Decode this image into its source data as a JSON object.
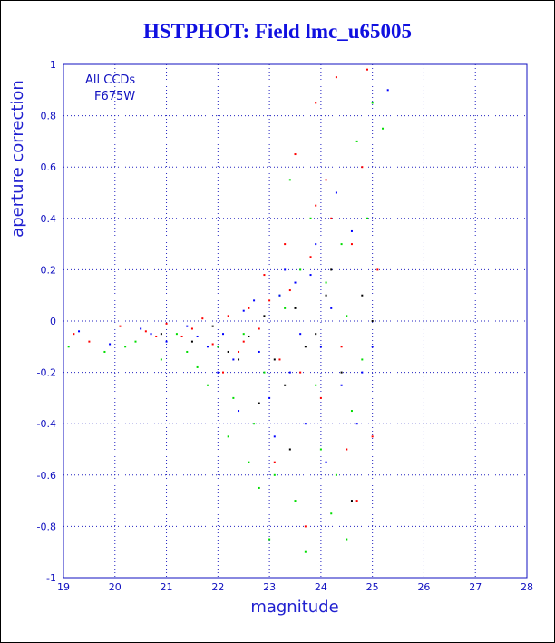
{
  "chart_data": {
    "type": "scatter",
    "title": "HSTPHOT: Field lmc_u65005",
    "xlabel": "magnitude",
    "ylabel": "aperture correction",
    "xlim": [
      19,
      28
    ],
    "ylim": [
      -1,
      1
    ],
    "xticks": [
      19,
      20,
      21,
      22,
      23,
      24,
      25,
      26,
      27,
      28
    ],
    "yticks": [
      -1,
      -0.8,
      -0.6,
      -0.4,
      -0.2,
      0,
      0.2,
      0.4,
      0.6,
      0.8,
      1
    ],
    "ytick_labels": [
      "-1",
      "-0.8",
      "-0.6",
      "-0.4",
      "-0.2",
      "0",
      "0.2",
      "0.4",
      "0.6",
      "0.8",
      "1"
    ],
    "grid": true,
    "annotations": [
      "All CCDs",
      "F675W"
    ],
    "series_colors": [
      "#ff0000",
      "#00dd00",
      "#0000ff",
      "#000000"
    ],
    "series": [
      {
        "color": "#ff0000",
        "points": [
          [
            19.2,
            -0.05
          ],
          [
            19.5,
            -0.08
          ],
          [
            20.1,
            -0.02
          ],
          [
            20.6,
            -0.04
          ],
          [
            21.0,
            -0.01
          ],
          [
            21.3,
            -0.06
          ],
          [
            21.7,
            0.01
          ],
          [
            21.9,
            -0.09
          ],
          [
            22.2,
            0.02
          ],
          [
            22.4,
            -0.12
          ],
          [
            22.6,
            0.05
          ],
          [
            22.8,
            -0.03
          ],
          [
            23.0,
            0.08
          ],
          [
            23.2,
            -0.15
          ],
          [
            23.4,
            0.12
          ],
          [
            23.5,
            0.65
          ],
          [
            23.6,
            -0.2
          ],
          [
            23.8,
            0.25
          ],
          [
            23.9,
            0.85
          ],
          [
            24.0,
            -0.3
          ],
          [
            24.2,
            0.4
          ],
          [
            24.3,
            0.95
          ],
          [
            24.5,
            -0.5
          ],
          [
            24.6,
            0.3
          ],
          [
            24.7,
            -0.7
          ],
          [
            24.8,
            0.6
          ],
          [
            24.9,
            0.98
          ],
          [
            25.0,
            -0.45
          ],
          [
            25.1,
            0.2
          ],
          [
            23.1,
            -0.55
          ],
          [
            22.9,
            0.18
          ],
          [
            23.7,
            -0.8
          ],
          [
            24.1,
            0.55
          ],
          [
            22.5,
            -0.08
          ],
          [
            21.5,
            -0.03
          ],
          [
            20.8,
            -0.06
          ],
          [
            23.3,
            0.3
          ],
          [
            24.4,
            -0.1
          ],
          [
            22.1,
            -0.2
          ],
          [
            23.9,
            0.45
          ]
        ]
      },
      {
        "color": "#00dd00",
        "points": [
          [
            19.1,
            -0.1
          ],
          [
            19.8,
            -0.12
          ],
          [
            20.4,
            -0.08
          ],
          [
            20.9,
            -0.15
          ],
          [
            21.2,
            -0.05
          ],
          [
            21.6,
            -0.18
          ],
          [
            21.8,
            -0.25
          ],
          [
            22.0,
            -0.1
          ],
          [
            22.3,
            -0.3
          ],
          [
            22.5,
            -0.05
          ],
          [
            22.7,
            -0.4
          ],
          [
            22.9,
            -0.2
          ],
          [
            23.1,
            -0.6
          ],
          [
            23.3,
            0.05
          ],
          [
            23.5,
            -0.7
          ],
          [
            23.6,
            0.2
          ],
          [
            23.7,
            -0.9
          ],
          [
            23.8,
            0.4
          ],
          [
            24.0,
            -0.5
          ],
          [
            24.1,
            0.15
          ],
          [
            24.2,
            -0.75
          ],
          [
            24.4,
            0.3
          ],
          [
            24.5,
            0.02
          ],
          [
            24.6,
            -0.35
          ],
          [
            24.7,
            0.7
          ],
          [
            24.8,
            -0.15
          ],
          [
            25.0,
            0.85
          ],
          [
            25.2,
            0.75
          ],
          [
            22.2,
            -0.45
          ],
          [
            23.0,
            -0.85
          ],
          [
            23.4,
            0.55
          ],
          [
            22.8,
            -0.65
          ],
          [
            24.3,
            -0.6
          ],
          [
            21.4,
            -0.12
          ],
          [
            20.2,
            -0.1
          ],
          [
            23.9,
            -0.25
          ],
          [
            24.9,
            0.4
          ],
          [
            23.2,
            0.1
          ],
          [
            22.6,
            -0.55
          ],
          [
            24.5,
            -0.85
          ]
        ]
      },
      {
        "color": "#0000ff",
        "points": [
          [
            19.3,
            -0.04
          ],
          [
            19.9,
            -0.09
          ],
          [
            20.5,
            -0.03
          ],
          [
            21.0,
            -0.08
          ],
          [
            21.4,
            -0.02
          ],
          [
            21.8,
            -0.1
          ],
          [
            22.1,
            -0.05
          ],
          [
            22.3,
            -0.15
          ],
          [
            22.5,
            0.04
          ],
          [
            22.8,
            -0.12
          ],
          [
            23.0,
            -0.3
          ],
          [
            23.2,
            0.1
          ],
          [
            23.4,
            -0.2
          ],
          [
            23.5,
            0.15
          ],
          [
            23.7,
            -0.4
          ],
          [
            23.9,
            0.3
          ],
          [
            24.0,
            -0.1
          ],
          [
            24.2,
            0.05
          ],
          [
            24.4,
            -0.25
          ],
          [
            24.6,
            0.35
          ],
          [
            24.8,
            -0.2
          ],
          [
            25.0,
            -0.1
          ],
          [
            25.3,
            0.9
          ],
          [
            22.4,
            -0.35
          ],
          [
            23.1,
            -0.45
          ],
          [
            23.6,
            -0.05
          ],
          [
            24.1,
            -0.55
          ],
          [
            22.0,
            -0.2
          ],
          [
            21.6,
            -0.06
          ],
          [
            20.7,
            -0.05
          ],
          [
            23.3,
            0.2
          ],
          [
            24.3,
            0.5
          ],
          [
            22.7,
            0.08
          ],
          [
            23.8,
            0.18
          ],
          [
            24.7,
            -0.4
          ]
        ]
      },
      {
        "color": "#000000",
        "points": [
          [
            20.9,
            -0.05
          ],
          [
            21.5,
            -0.08
          ],
          [
            21.9,
            -0.02
          ],
          [
            22.2,
            -0.12
          ],
          [
            22.6,
            -0.06
          ],
          [
            22.9,
            0.02
          ],
          [
            23.1,
            -0.15
          ],
          [
            23.3,
            -0.25
          ],
          [
            23.5,
            0.05
          ],
          [
            23.7,
            -0.1
          ],
          [
            23.9,
            -0.05
          ],
          [
            24.1,
            0.1
          ],
          [
            24.4,
            -0.2
          ],
          [
            24.6,
            -0.7
          ],
          [
            24.8,
            0.1
          ],
          [
            25.0,
            0.0
          ],
          [
            22.8,
            -0.32
          ],
          [
            23.4,
            -0.5
          ],
          [
            24.2,
            0.2
          ],
          [
            22.4,
            -0.15
          ]
        ]
      }
    ]
  }
}
